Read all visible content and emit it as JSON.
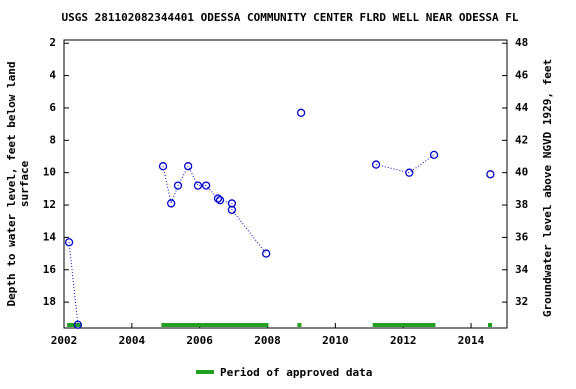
{
  "chart_data": {
    "type": "scatter",
    "title": "USGS 281102082344401 ODESSA COMMUNITY CENTER FLRD WELL NEAR ODESSA FL",
    "y_label_lines": [
      "Depth to water level, feet below land",
      "surface"
    ],
    "y2_label": "Groundwater level above NGVD 1929, feet",
    "xlim": [
      2002,
      2015.06
    ],
    "xticks": [
      2002,
      2004,
      2006,
      2008,
      2010,
      2012,
      2014
    ],
    "ylim": [
      19.6,
      1.8
    ],
    "yticks": [
      2,
      4,
      6,
      8,
      10,
      12,
      14,
      16,
      18
    ],
    "y2lim": [
      30.4,
      48.2
    ],
    "y2ticks": [
      32,
      34,
      36,
      38,
      40,
      42,
      44,
      46,
      48
    ],
    "series": [
      {
        "name": "Depth to water level",
        "color": "#0000cc",
        "x": [
          2002.15,
          2002.41,
          null,
          2004.92,
          2005.16,
          2005.36,
          2005.66,
          2005.95,
          2006.19,
          2006.54,
          2006.6,
          2006.95,
          2006.95,
          2007.96,
          null,
          2008.99,
          null,
          2011.2,
          2012.18,
          2012.91,
          null,
          2014.57
        ],
        "values": [
          14.3,
          19.4,
          null,
          9.6,
          11.9,
          10.8,
          9.6,
          10.8,
          10.8,
          11.6,
          11.7,
          11.9,
          12.3,
          15.0,
          null,
          6.3,
          null,
          9.5,
          10.0,
          8.9,
          null,
          10.1
        ]
      }
    ],
    "approved_periods": {
      "name": "Period of approved data",
      "color": "#22a022",
      "ranges": [
        [
          2002.09,
          2002.5
        ],
        [
          2004.87,
          2008.03
        ],
        [
          2008.88,
          2009.0
        ],
        [
          2011.1,
          2012.95
        ],
        [
          2014.5,
          2014.62
        ]
      ]
    }
  }
}
